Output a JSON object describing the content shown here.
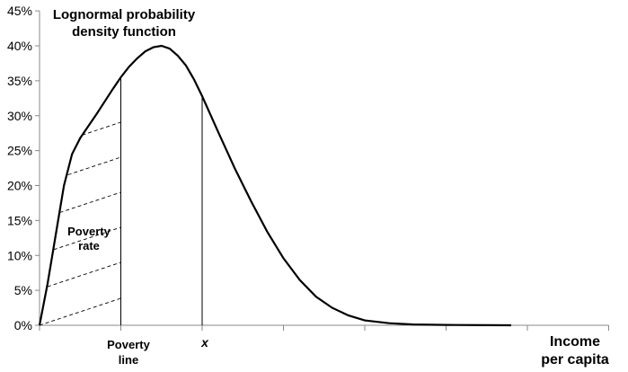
{
  "chart_data": {
    "type": "line",
    "title_lines": [
      "Lognormal probability",
      "density function"
    ],
    "xlabel_lines": [
      "Income",
      "per capita"
    ],
    "y_tick_labels": [
      "0%",
      "5%",
      "10%",
      "15%",
      "20%",
      "25%",
      "30%",
      "35%",
      "40%",
      "45%"
    ],
    "ylim": [
      0,
      45
    ],
    "xlim": [
      0,
      7
    ],
    "x_ticks": [
      0,
      1,
      2,
      3,
      4,
      5,
      6,
      7
    ],
    "grid": false,
    "series": [
      {
        "x": [
          0,
          0.1,
          0.2,
          0.3,
          0.4,
          0.5,
          0.6,
          0.7,
          0.8,
          0.9,
          1.0,
          1.1,
          1.2,
          1.3,
          1.4,
          1.5,
          1.6,
          1.7,
          1.8,
          1.9,
          2.0,
          2.2,
          2.4,
          2.6,
          2.8,
          3.0,
          3.2,
          3.4,
          3.6,
          3.8,
          4.0,
          4.3,
          4.6,
          5.0,
          5.5,
          5.8
        ],
        "values": [
          0,
          6,
          13,
          20,
          24.5,
          26.8,
          28.5,
          30.2,
          32,
          33.8,
          35.5,
          37,
          38.2,
          39.2,
          39.8,
          40,
          39.6,
          38.6,
          37.2,
          35.2,
          32.8,
          27.6,
          22.5,
          17.8,
          13.4,
          9.6,
          6.5,
          4.1,
          2.5,
          1.4,
          0.7,
          0.3,
          0.12,
          0.05,
          0.01,
          0
        ]
      }
    ],
    "markers": [
      {
        "x": 1,
        "label_lines": [
          "Poverty",
          "line"
        ]
      },
      {
        "x": 2,
        "label": "x"
      }
    ],
    "shaded_region_label": [
      "Poverty",
      "rate"
    ]
  }
}
